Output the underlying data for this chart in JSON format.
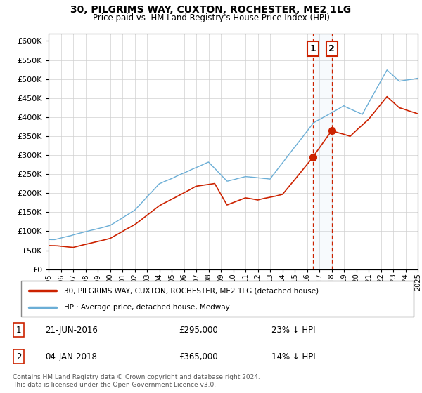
{
  "title": "30, PILGRIMS WAY, CUXTON, ROCHESTER, ME2 1LG",
  "subtitle": "Price paid vs. HM Land Registry's House Price Index (HPI)",
  "legend_line1": "30, PILGRIMS WAY, CUXTON, ROCHESTER, ME2 1LG (detached house)",
  "legend_line2": "HPI: Average price, detached house, Medway",
  "transaction1_date": "21-JUN-2016",
  "transaction1_price": 295000,
  "transaction1_note": "23% ↓ HPI",
  "transaction2_date": "04-JAN-2018",
  "transaction2_price": 365000,
  "transaction2_note": "14% ↓ HPI",
  "footer": "Contains HM Land Registry data © Crown copyright and database right 2024.\nThis data is licensed under the Open Government Licence v3.0.",
  "hpi_color": "#6baed6",
  "price_color": "#cc2200",
  "vline_color": "#cc2200",
  "shade_color": "#d6e8f5",
  "ylim": [
    0,
    620000
  ],
  "yticks": [
    0,
    50000,
    100000,
    150000,
    200000,
    250000,
    300000,
    350000,
    400000,
    450000,
    500000,
    550000,
    600000
  ],
  "year_start": 1995,
  "year_end": 2025,
  "t1_year": 2016.47,
  "t2_year": 2018.01,
  "t1_price": 295000,
  "t2_price": 365000
}
